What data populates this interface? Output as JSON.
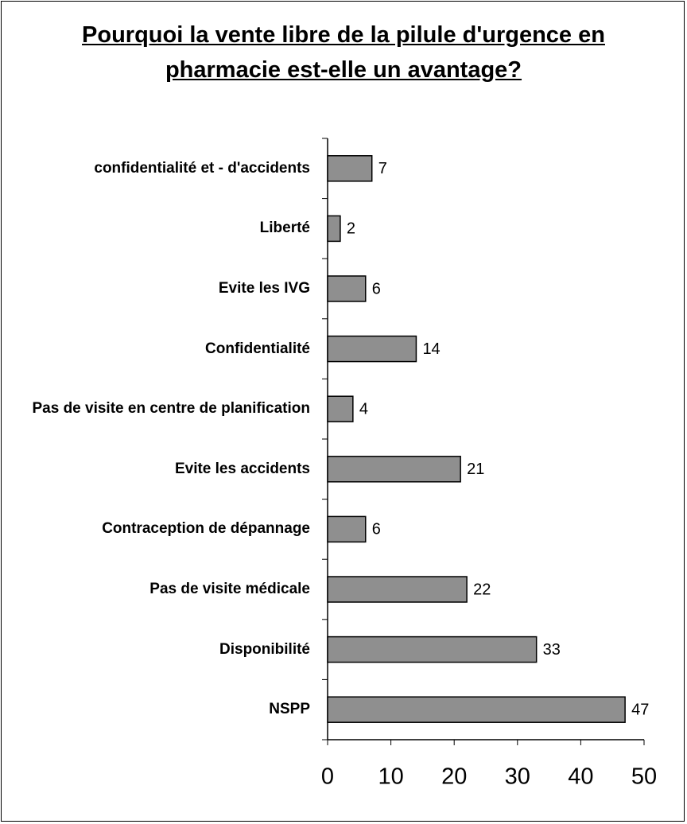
{
  "chart_data": {
    "type": "bar",
    "orientation": "horizontal",
    "title": "Pourquoi la vente libre de la pilule d'urgence en pharmacie est-elle un avantage?",
    "categories": [
      "confidentialité et - d'accidents",
      "Liberté",
      "Evite les IVG",
      "Confidentialité",
      "Pas de visite en centre de planification",
      "Evite les accidents",
      "Contraception de dépannage",
      "Pas de visite médicale",
      "Disponibilité",
      "NSPP"
    ],
    "values": [
      7,
      2,
      6,
      14,
      4,
      21,
      6,
      22,
      33,
      47
    ],
    "color": "#8f8f8f",
    "xlim": [
      0,
      50
    ],
    "xticks": [
      0,
      10,
      20,
      30,
      40,
      50
    ],
    "grid": false
  }
}
